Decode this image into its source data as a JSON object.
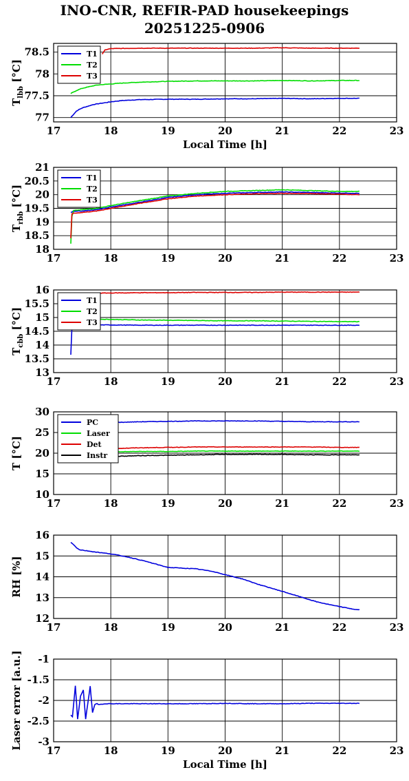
{
  "title_line1": "INO-CNR, REFIR-PAD housekeepings",
  "title_line2": "20251225-0906",
  "chart_data": [
    {
      "type": "line",
      "ylabel": "T_lbb [°C]",
      "xlabel": "Local Time [h]",
      "xlim": [
        17,
        23
      ],
      "ylim": [
        76.9,
        78.7
      ],
      "yticks": [
        77,
        77.5,
        78,
        78.5
      ],
      "xticks": [
        17,
        18,
        19,
        20,
        21,
        22,
        23
      ],
      "grid": true,
      "legend": "top-left",
      "series": [
        {
          "name": "T1",
          "color": "#0000dd",
          "x": [
            17.3,
            17.4,
            17.5,
            17.6,
            17.7,
            17.8,
            17.9,
            18.0,
            18.2,
            18.5,
            19.0,
            19.5,
            20.0,
            20.5,
            21.0,
            21.5,
            22.0,
            22.35
          ],
          "y": [
            77.0,
            77.15,
            77.22,
            77.26,
            77.3,
            77.32,
            77.34,
            77.36,
            77.39,
            77.41,
            77.42,
            77.42,
            77.43,
            77.43,
            77.44,
            77.43,
            77.44,
            77.44
          ]
        },
        {
          "name": "T2",
          "color": "#00dd00",
          "x": [
            17.3,
            17.4,
            17.5,
            17.6,
            17.7,
            17.8,
            17.9,
            18.0,
            18.2,
            18.5,
            19.0,
            19.5,
            20.0,
            20.5,
            21.0,
            21.5,
            22.0,
            22.35
          ],
          "y": [
            77.55,
            77.62,
            77.67,
            77.7,
            77.73,
            77.75,
            77.76,
            77.77,
            77.79,
            77.81,
            77.83,
            77.84,
            77.84,
            77.84,
            77.85,
            77.84,
            77.85,
            77.85
          ]
        },
        {
          "name": "T3",
          "color": "#dd0000",
          "x": [
            17.85,
            17.9,
            18.0,
            18.5,
            19.0,
            19.5,
            20.0,
            20.5,
            21.0,
            21.5,
            22.0,
            22.35
          ],
          "y": [
            78.45,
            78.55,
            78.58,
            78.59,
            78.59,
            78.59,
            78.59,
            78.59,
            78.6,
            78.59,
            78.59,
            78.59
          ]
        }
      ]
    },
    {
      "type": "line",
      "ylabel": "T_rbb [°C]",
      "xlabel": "",
      "xlim": [
        17,
        23
      ],
      "ylim": [
        18,
        21
      ],
      "yticks": [
        18,
        18.5,
        19,
        19.5,
        20,
        20.5,
        21
      ],
      "xticks": [
        17,
        18,
        19,
        20,
        21,
        22,
        23
      ],
      "grid": true,
      "legend": "top-left",
      "series": [
        {
          "name": "T1",
          "color": "#0000dd",
          "x": [
            17.3,
            17.35,
            17.5,
            17.75,
            18.0,
            18.5,
            19.0,
            19.5,
            20.0,
            20.5,
            21.0,
            21.5,
            22.0,
            22.35
          ],
          "y": [
            19.35,
            19.4,
            19.4,
            19.45,
            19.55,
            19.72,
            19.9,
            20.0,
            20.05,
            20.08,
            20.1,
            20.08,
            20.06,
            20.05
          ]
        },
        {
          "name": "T2",
          "color": "#00dd00",
          "x": [
            17.3,
            17.32,
            17.35,
            17.5,
            17.75,
            18.0,
            18.5,
            19.0,
            19.5,
            20.0,
            20.5,
            21.0,
            21.5,
            22.0,
            22.35
          ],
          "y": [
            18.2,
            19.2,
            19.42,
            19.45,
            19.5,
            19.6,
            19.78,
            19.95,
            20.05,
            20.12,
            20.15,
            20.18,
            20.15,
            20.12,
            20.12
          ]
        },
        {
          "name": "T3",
          "color": "#dd0000",
          "x": [
            17.3,
            17.32,
            17.35,
            17.5,
            17.75,
            18.0,
            18.5,
            19.0,
            19.5,
            20.0,
            20.5,
            21.0,
            21.5,
            22.0,
            22.35
          ],
          "y": [
            18.4,
            19.3,
            19.32,
            19.35,
            19.4,
            19.5,
            19.68,
            19.85,
            19.95,
            20.0,
            20.03,
            20.05,
            20.04,
            20.02,
            20.0
          ]
        }
      ]
    },
    {
      "type": "line",
      "ylabel": "T_cbb [°C]",
      "xlabel": "",
      "xlim": [
        17,
        23
      ],
      "ylim": [
        13,
        16
      ],
      "yticks": [
        13,
        13.5,
        14,
        14.5,
        15,
        15.5,
        16
      ],
      "xticks": [
        17,
        18,
        19,
        20,
        21,
        22,
        23
      ],
      "grid": true,
      "legend": "top-left",
      "series": [
        {
          "name": "T1",
          "color": "#0000dd",
          "x": [
            17.3,
            17.32,
            17.35,
            17.5,
            18.0,
            18.5,
            19.0,
            19.5,
            20.0,
            20.5,
            21.0,
            21.5,
            22.0,
            22.35
          ],
          "y": [
            13.65,
            14.6,
            14.72,
            14.73,
            14.73,
            14.72,
            14.72,
            14.72,
            14.72,
            14.72,
            14.72,
            14.72,
            14.72,
            14.72
          ]
        },
        {
          "name": "T2",
          "color": "#00dd00",
          "x": [
            17.3,
            17.35,
            17.5,
            18.0,
            18.5,
            19.0,
            19.5,
            20.0,
            20.5,
            21.0,
            21.5,
            22.0,
            22.35
          ],
          "y": [
            14.9,
            14.95,
            14.95,
            14.93,
            14.91,
            14.9,
            14.89,
            14.88,
            14.88,
            14.87,
            14.86,
            14.85,
            14.85
          ]
        },
        {
          "name": "T3",
          "color": "#dd0000",
          "x": [
            17.3,
            17.5,
            18.0,
            18.5,
            19.0,
            19.5,
            20.0,
            20.5,
            21.0,
            21.5,
            22.0,
            22.35
          ],
          "y": [
            15.88,
            15.88,
            15.89,
            15.9,
            15.9,
            15.91,
            15.91,
            15.91,
            15.92,
            15.92,
            15.92,
            15.92
          ]
        }
      ]
    },
    {
      "type": "line",
      "ylabel": "T [°C]",
      "xlabel": "",
      "xlim": [
        17,
        23
      ],
      "ylim": [
        10,
        30
      ],
      "yticks": [
        10,
        15,
        20,
        25,
        30
      ],
      "xticks": [
        17,
        18,
        19,
        20,
        21,
        22,
        23
      ],
      "grid": true,
      "legend": "top-left",
      "series": [
        {
          "name": "PC",
          "color": "#0000dd",
          "x": [
            17.3,
            17.5,
            18.0,
            18.5,
            19.0,
            19.5,
            20.0,
            20.5,
            21.0,
            21.5,
            22.0,
            22.35
          ],
          "y": [
            27.1,
            27.2,
            27.4,
            27.6,
            27.7,
            27.8,
            27.8,
            27.8,
            27.7,
            27.6,
            27.6,
            27.6
          ]
        },
        {
          "name": "Laser",
          "color": "#00dd00",
          "x": [
            17.3,
            17.5,
            18.0,
            18.5,
            19.0,
            19.5,
            20.0,
            20.5,
            21.0,
            21.5,
            22.0,
            22.35
          ],
          "y": [
            20.1,
            20.2,
            20.3,
            20.4,
            20.4,
            20.5,
            20.5,
            20.5,
            20.5,
            20.5,
            20.5,
            20.5
          ]
        },
        {
          "name": "Det",
          "color": "#dd0000",
          "x": [
            17.3,
            17.5,
            18.0,
            18.5,
            19.0,
            19.5,
            20.0,
            20.5,
            21.0,
            21.5,
            22.0,
            22.35
          ],
          "y": [
            20.8,
            20.9,
            21.1,
            21.3,
            21.4,
            21.5,
            21.5,
            21.5,
            21.5,
            21.5,
            21.4,
            21.4
          ]
        },
        {
          "name": "Instr",
          "color": "#000000",
          "x": [
            17.3,
            17.5,
            18.0,
            18.5,
            19.0,
            19.5,
            20.0,
            20.5,
            21.0,
            21.5,
            22.0,
            22.35
          ],
          "y": [
            18.9,
            19.0,
            19.2,
            19.4,
            19.5,
            19.6,
            19.7,
            19.7,
            19.7,
            19.6,
            19.6,
            19.6
          ]
        }
      ]
    },
    {
      "type": "line",
      "ylabel": "RH [%]",
      "xlabel": "",
      "xlim": [
        17,
        23
      ],
      "ylim": [
        12,
        16
      ],
      "yticks": [
        12,
        13,
        14,
        15,
        16
      ],
      "xticks": [
        17,
        18,
        19,
        20,
        21,
        22,
        23
      ],
      "grid": true,
      "series": [
        {
          "color": "#0000dd",
          "x": [
            17.3,
            17.35,
            17.4,
            17.45,
            17.5,
            17.7,
            18.0,
            18.3,
            18.6,
            18.8,
            19.0,
            19.5,
            19.8,
            20.0,
            20.3,
            20.6,
            21.0,
            21.3,
            21.6,
            21.9,
            22.1,
            22.3,
            22.35
          ],
          "y": [
            15.65,
            15.55,
            15.4,
            15.3,
            15.28,
            15.2,
            15.1,
            14.95,
            14.75,
            14.6,
            14.45,
            14.38,
            14.25,
            14.1,
            13.9,
            13.62,
            13.3,
            13.05,
            12.8,
            12.62,
            12.52,
            12.42,
            12.42
          ]
        }
      ]
    },
    {
      "type": "line",
      "ylabel": "Laser error [a.u.]",
      "xlabel": "Local Time [h]",
      "xlim": [
        17,
        23
      ],
      "ylim": [
        -3,
        -1
      ],
      "yticks": [
        -3,
        -2.5,
        -2,
        -1.5,
        -1
      ],
      "xticks": [
        17,
        18,
        19,
        20,
        21,
        22,
        23
      ],
      "grid": true,
      "series": [
        {
          "color": "#0000dd",
          "x": [
            17.3,
            17.33,
            17.38,
            17.42,
            17.47,
            17.52,
            17.56,
            17.6,
            17.64,
            17.68,
            17.72,
            17.76,
            17.8,
            17.9,
            18.0,
            18.5,
            19.0,
            19.5,
            20.0,
            20.5,
            21.0,
            21.5,
            22.0,
            22.35
          ],
          "y": [
            -2.35,
            -2.4,
            -1.65,
            -2.45,
            -1.9,
            -1.75,
            -2.45,
            -2.05,
            -1.65,
            -2.3,
            -2.1,
            -2.08,
            -2.1,
            -2.08,
            -2.08,
            -2.08,
            -2.08,
            -2.08,
            -2.07,
            -2.08,
            -2.08,
            -2.07,
            -2.07,
            -2.07
          ]
        }
      ]
    }
  ]
}
